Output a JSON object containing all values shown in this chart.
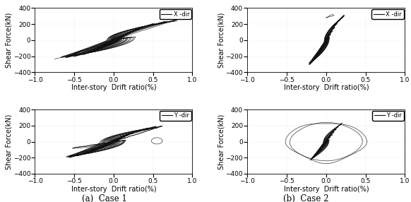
{
  "title_a": "(a)  Case 1",
  "title_b": "(b)  Case 2",
  "xlabel": "Inter-story  Drift ratio(%)",
  "ylabel": "Shear Force(kN)",
  "xlim": [
    -1,
    1
  ],
  "ylim": [
    -400,
    400
  ],
  "xticks": [
    -1,
    -0.5,
    0,
    0.5,
    1
  ],
  "yticks": [
    -400,
    -200,
    0,
    200,
    400
  ],
  "legend_x": "X -dir",
  "legend_y": "Y -dir",
  "line_color": "#111111",
  "background": "#ffffff",
  "tick_fontsize": 6.5,
  "label_fontsize": 7,
  "caption_fontsize": 8.5
}
